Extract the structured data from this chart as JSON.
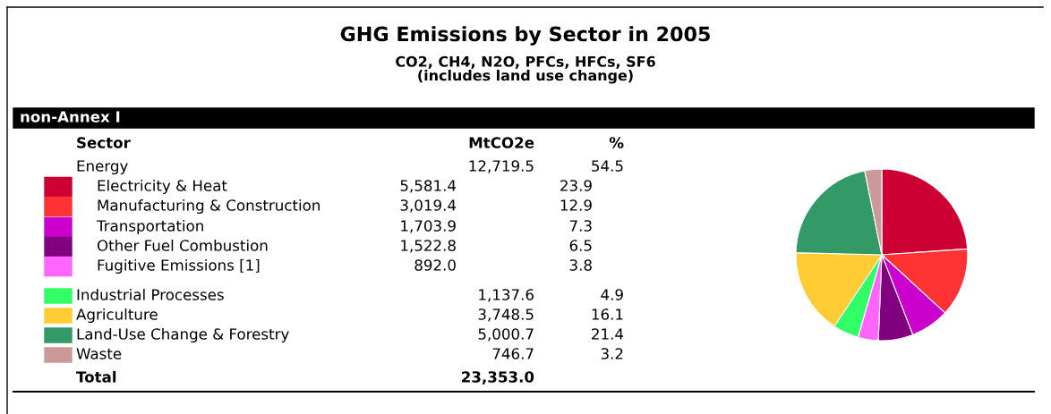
{
  "chart_data": {
    "type": "pie",
    "title": "GHG Emissions by Sector in 2005",
    "subtitle": "CO2, CH4, N2O, PFCs, HFCs, SF6\n(includes land use change)",
    "categories": [
      "Electricity & Heat",
      "Manufacturing & Construction",
      "Transportation",
      "Other Fuel Combustion",
      "Fugitive Emissions [1]",
      "Industrial Processes",
      "Agriculture",
      "Land-Use Change & Forestry",
      "Waste"
    ],
    "values": [
      5581.4,
      3019.4,
      1703.9,
      1522.8,
      892.0,
      1137.6,
      3748.5,
      5000.7,
      746.7
    ],
    "value_labels": [
      "5,581.4",
      "3,019.4",
      "1,703.9",
      "1,522.8",
      "892.0",
      "1,137.6",
      "3,748.5",
      "5,000.7",
      "746.7"
    ],
    "colors": [
      "#cc0033",
      "#ff3333",
      "#cc00cc",
      "#800080",
      "#ff66ff",
      "#33ff66",
      "#ffcc33",
      "#339966",
      "#cc9999"
    ],
    "legend": "left",
    "annotations": [
      "non-Annex I",
      "Sector",
      "MtCO2e",
      "%",
      "Energy",
      "12,719.5",
      "54.5",
      "23.9",
      "12.9",
      "7.3",
      "6.5",
      "3.8",
      "4.9",
      "16.1",
      "21.4",
      "3.2",
      "Total",
      "23,353.0"
    ]
  }
}
